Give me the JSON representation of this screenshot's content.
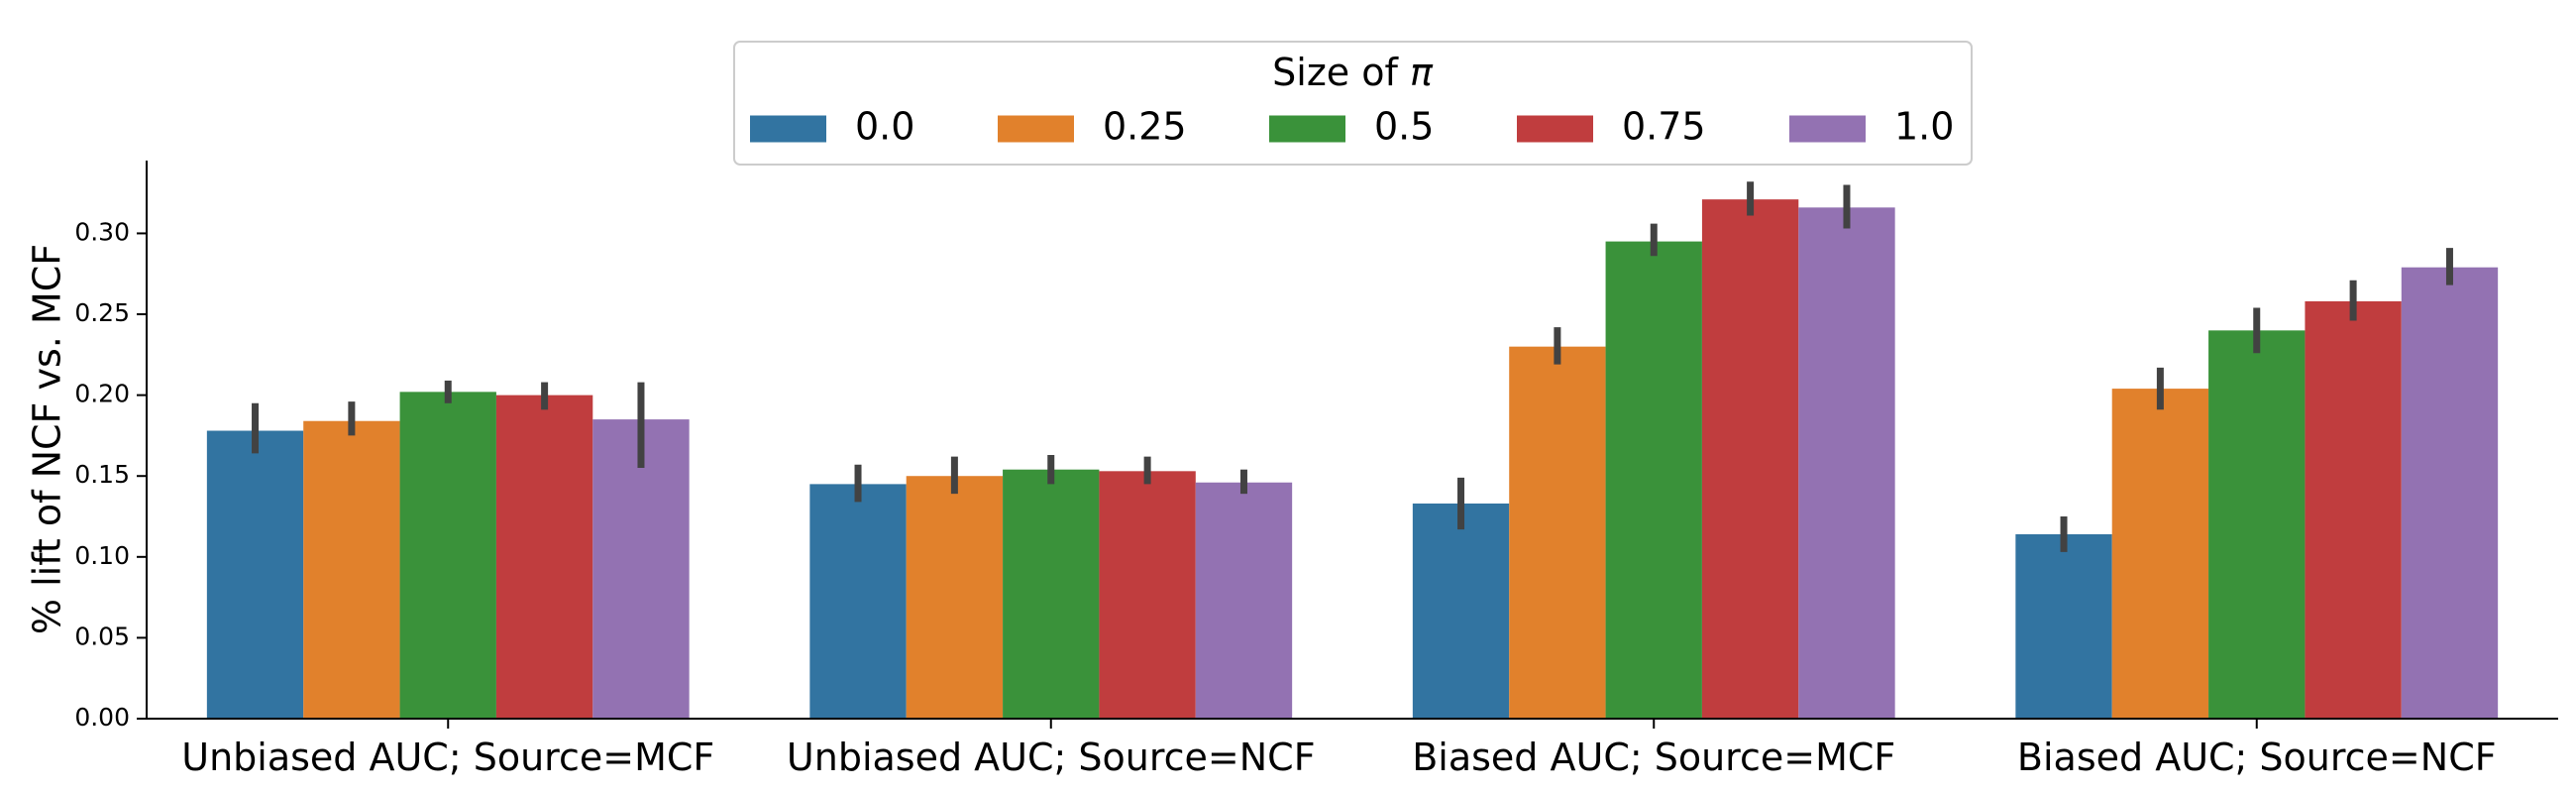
{
  "chart_data": {
    "type": "bar",
    "title": "",
    "xlabel": "",
    "ylabel": "% lift of NCF vs. MCF",
    "ylim": [
      0,
      0.345
    ],
    "yticks": [
      0.0,
      0.05,
      0.1,
      0.15,
      0.2,
      0.25,
      0.3
    ],
    "ytick_labels": [
      "0.00",
      "0.05",
      "0.10",
      "0.15",
      "0.20",
      "0.25",
      "0.30"
    ],
    "categories": [
      "Unbiased AUC; Source=MCF",
      "Unbiased AUC; Source=NCF",
      "Biased AUC; Source=MCF",
      "Biased AUC; Source=NCF"
    ],
    "legend": {
      "title_prefix": "Size of ",
      "title_symbol": "π",
      "placement": "top-center"
    },
    "series": [
      {
        "name": "0.0",
        "color": "#3274a1",
        "values": [
          0.178,
          0.145,
          0.133,
          0.114
        ],
        "err_low": [
          0.164,
          0.134,
          0.117,
          0.103
        ],
        "err_high": [
          0.195,
          0.157,
          0.149,
          0.125
        ]
      },
      {
        "name": "0.25",
        "color": "#e1812c",
        "values": [
          0.184,
          0.15,
          0.23,
          0.204
        ],
        "err_low": [
          0.175,
          0.139,
          0.219,
          0.191
        ],
        "err_high": [
          0.196,
          0.162,
          0.242,
          0.217
        ]
      },
      {
        "name": "0.5",
        "color": "#3a923a",
        "values": [
          0.202,
          0.154,
          0.295,
          0.24
        ],
        "err_low": [
          0.195,
          0.145,
          0.286,
          0.226
        ],
        "err_high": [
          0.209,
          0.163,
          0.306,
          0.254
        ]
      },
      {
        "name": "0.75",
        "color": "#c03d3e",
        "values": [
          0.2,
          0.153,
          0.321,
          0.258
        ],
        "err_low": [
          0.191,
          0.145,
          0.311,
          0.246
        ],
        "err_high": [
          0.208,
          0.162,
          0.332,
          0.271
        ]
      },
      {
        "name": "1.0",
        "color": "#9372b2",
        "values": [
          0.185,
          0.146,
          0.316,
          0.279
        ],
        "err_low": [
          0.155,
          0.139,
          0.303,
          0.268
        ],
        "err_high": [
          0.208,
          0.154,
          0.33,
          0.291
        ]
      }
    ],
    "error_bar_color": "#424242"
  }
}
